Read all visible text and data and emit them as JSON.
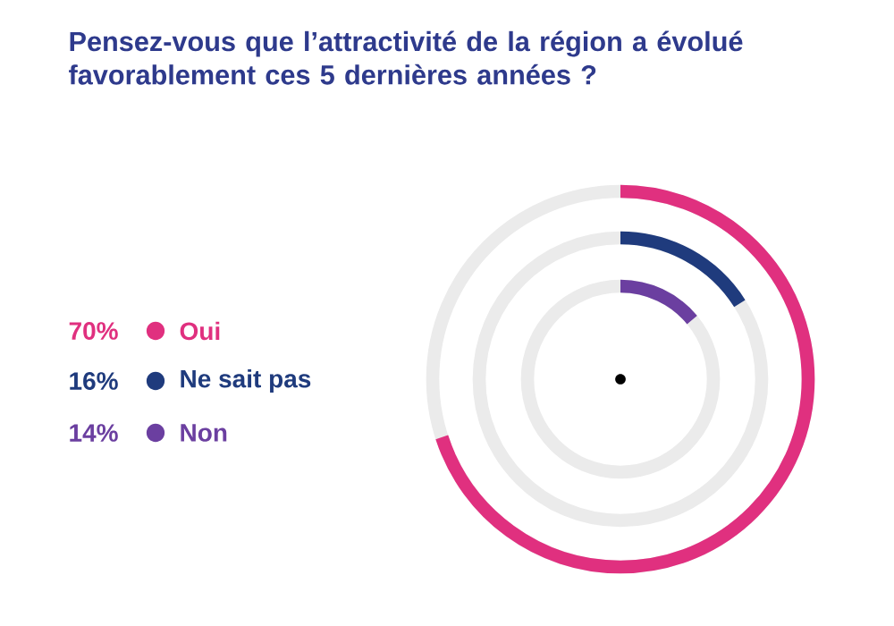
{
  "chart_data": {
    "type": "other",
    "title": "Pensez-vous que l’attractivité de la région a évolué favorablement ces 5 dernières années ?",
    "categories": [
      "Oui",
      "Ne sait pas",
      "Non"
    ],
    "values": [
      70,
      16,
      14
    ],
    "value_labels": [
      "70%",
      "16%",
      "14%"
    ],
    "colors": [
      "#e0307f",
      "#1f3b7d",
      "#6b3fa0"
    ]
  }
}
